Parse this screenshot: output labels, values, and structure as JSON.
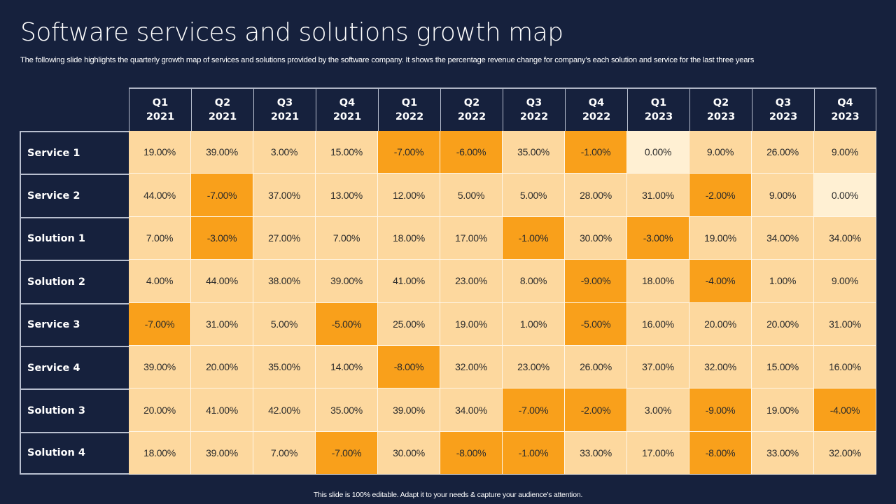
{
  "slide": {
    "title": "Software services and solutions growth map",
    "subtitle": "The following slide highlights the quarterly growth map of services and solutions provided by the software company. It shows the percentage revenue change for company’s each solution and service for the last three years",
    "footer": "This slide is 100% editable.  Adapt it to your needs & capture your audience’s attention."
  },
  "colors": {
    "background": "#16213d",
    "negative": "#f9a01b",
    "positive": "#fdd89e",
    "zero": "#fff0d3"
  },
  "chart_data": {
    "type": "heatmap",
    "title": "Software services and solutions growth map",
    "columns": [
      {
        "quarter": "Q1",
        "year": "2021"
      },
      {
        "quarter": "Q2",
        "year": "2021"
      },
      {
        "quarter": "Q3",
        "year": "2021"
      },
      {
        "quarter": "Q4",
        "year": "2021"
      },
      {
        "quarter": "Q1",
        "year": "2022"
      },
      {
        "quarter": "Q2",
        "year": "2022"
      },
      {
        "quarter": "Q3",
        "year": "2022"
      },
      {
        "quarter": "Q4",
        "year": "2022"
      },
      {
        "quarter": "Q1",
        "year": "2023"
      },
      {
        "quarter": "Q2",
        "year": "2023"
      },
      {
        "quarter": "Q3",
        "year": "2023"
      },
      {
        "quarter": "Q4",
        "year": "2023"
      }
    ],
    "rows": [
      "Service 1",
      "Service 2",
      "Solution 1",
      "Solution 2",
      "Service 3",
      "Service 4",
      "Solution 3",
      "Solution 4"
    ],
    "values": [
      [
        19,
        39,
        3,
        15,
        -7,
        -6,
        35,
        -1,
        0,
        9,
        26,
        9
      ],
      [
        44,
        -7,
        37,
        13,
        12,
        5,
        5,
        28,
        31,
        -2,
        9,
        0
      ],
      [
        7,
        -3,
        27,
        7,
        18,
        17,
        -1,
        30,
        -3,
        19,
        34,
        34
      ],
      [
        4,
        44,
        38,
        39,
        41,
        23,
        8,
        -9,
        18,
        -4,
        1,
        9
      ],
      [
        -7,
        31,
        5,
        -5,
        25,
        19,
        1,
        -5,
        16,
        20,
        20,
        31
      ],
      [
        39,
        20,
        35,
        14,
        -8,
        32,
        23,
        26,
        37,
        32,
        15,
        16
      ],
      [
        20,
        41,
        42,
        35,
        39,
        34,
        -7,
        -2,
        3,
        -9,
        19,
        -4
      ],
      [
        18,
        39,
        7,
        -7,
        30,
        -8,
        -1,
        33,
        17,
        -8,
        33,
        32
      ]
    ],
    "unit": "%",
    "color_rule": "negative = dark orange, zero = pale cream, positive = light orange"
  }
}
